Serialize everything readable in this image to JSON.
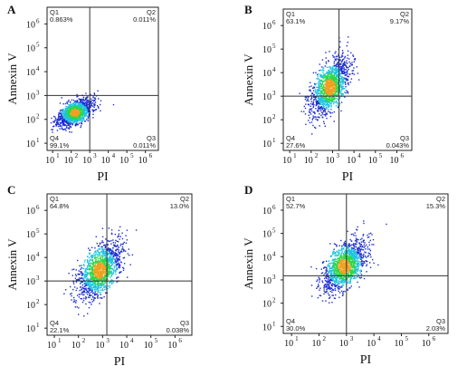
{
  "chart_data": [
    {
      "panel_label": "A",
      "type": "scatter",
      "xlabel": "PI",
      "ylabel": "Annexin V",
      "x_scale": "log",
      "y_scale": "log",
      "x_ticks": [
        "10",
        "10",
        "10",
        "10",
        "10",
        "10"
      ],
      "x_tick_exps": [
        "1",
        "2",
        "3",
        "4",
        "5",
        "6"
      ],
      "y_ticks": [
        "10",
        "10",
        "10",
        "10",
        "10",
        "10"
      ],
      "y_tick_exps": [
        "1",
        "2",
        "3",
        "4",
        "5",
        "6"
      ],
      "xlim": [
        5,
        5000000
      ],
      "ylim": [
        5,
        5000000
      ],
      "gate": {
        "x": 1000,
        "y": 1000
      },
      "quadrants": [
        {
          "name": "Q1",
          "value": "0.863%"
        },
        {
          "name": "Q2",
          "value": "0.011%"
        },
        {
          "name": "Q4",
          "value": "99.1%"
        },
        {
          "name": "Q3",
          "value": "0.011%"
        }
      ],
      "population": {
        "center": [
          150,
          200
        ],
        "spread": [
          0.45,
          0.28
        ]
      }
    },
    {
      "panel_label": "B",
      "type": "scatter",
      "xlabel": "PI",
      "ylabel": "Annexin V",
      "x_scale": "log",
      "y_scale": "log",
      "x_ticks": [
        "10",
        "10",
        "10",
        "10",
        "10",
        "10"
      ],
      "x_tick_exps": [
        "1",
        "2",
        "3",
        "4",
        "5",
        "6"
      ],
      "y_ticks": [
        "10",
        "10",
        "10",
        "10",
        "10",
        "10"
      ],
      "y_tick_exps": [
        "1",
        "2",
        "3",
        "4",
        "5",
        "6"
      ],
      "xlim": [
        5,
        5000000
      ],
      "ylim": [
        5,
        5000000
      ],
      "gate": {
        "x": 2000,
        "y": 1000
      },
      "quadrants": [
        {
          "name": "Q1",
          "value": "63.1%"
        },
        {
          "name": "Q2",
          "value": "9.17%"
        },
        {
          "name": "Q4",
          "value": "27.6%"
        },
        {
          "name": "Q3",
          "value": "0.043%"
        }
      ],
      "population": {
        "center": [
          700,
          2500
        ],
        "spread": [
          0.45,
          0.6
        ]
      }
    },
    {
      "panel_label": "C",
      "type": "scatter",
      "xlabel": "PI",
      "ylabel": "Annexin V",
      "x_scale": "log",
      "y_scale": "log",
      "x_ticks": [
        "10",
        "10",
        "10",
        "10",
        "10",
        "10"
      ],
      "x_tick_exps": [
        "1",
        "2",
        "3",
        "4",
        "5",
        "6"
      ],
      "y_ticks": [
        "10",
        "10",
        "10",
        "10",
        "10",
        "10"
      ],
      "y_tick_exps": [
        "1",
        "2",
        "3",
        "4",
        "5",
        "6"
      ],
      "xlim": [
        5,
        5000000
      ],
      "ylim": [
        5,
        5000000
      ],
      "gate": {
        "x": 1500,
        "y": 1000
      },
      "quadrants": [
        {
          "name": "Q1",
          "value": "64.8%"
        },
        {
          "name": "Q2",
          "value": "13.0%"
        },
        {
          "name": "Q4",
          "value": "22.1%"
        },
        {
          "name": "Q3",
          "value": "0.038%"
        }
      ],
      "population": {
        "center": [
          700,
          3000
        ],
        "spread": [
          0.45,
          0.6
        ]
      }
    },
    {
      "panel_label": "D",
      "type": "scatter",
      "xlabel": "PI",
      "ylabel": "Annexin V",
      "x_scale": "log",
      "y_scale": "log",
      "x_ticks": [
        "10",
        "10",
        "10",
        "10",
        "10",
        "10"
      ],
      "x_tick_exps": [
        "1",
        "2",
        "3",
        "4",
        "5",
        "6"
      ],
      "y_ticks": [
        "10",
        "10",
        "10",
        "10",
        "10",
        "10"
      ],
      "y_tick_exps": [
        "1",
        "2",
        "3",
        "4",
        "5",
        "6"
      ],
      "xlim": [
        5,
        5000000
      ],
      "ylim": [
        5,
        5000000
      ],
      "gate": {
        "x": 1000,
        "y": 1500
      },
      "quadrants": [
        {
          "name": "Q1",
          "value": "52.7%"
        },
        {
          "name": "Q2",
          "value": "15.3%"
        },
        {
          "name": "Q4",
          "value": "30.0%"
        },
        {
          "name": "Q3",
          "value": "2.03%"
        }
      ],
      "population": {
        "center": [
          800,
          4000
        ],
        "spread": [
          0.4,
          0.55
        ]
      }
    }
  ],
  "colors": {
    "density_low": "#1f2fd0",
    "density_mid": "#1ec3e0",
    "density_high": "#2ad84a",
    "density_peak": "#f0a020",
    "gate_line": "#333333",
    "frame": "#222222"
  }
}
